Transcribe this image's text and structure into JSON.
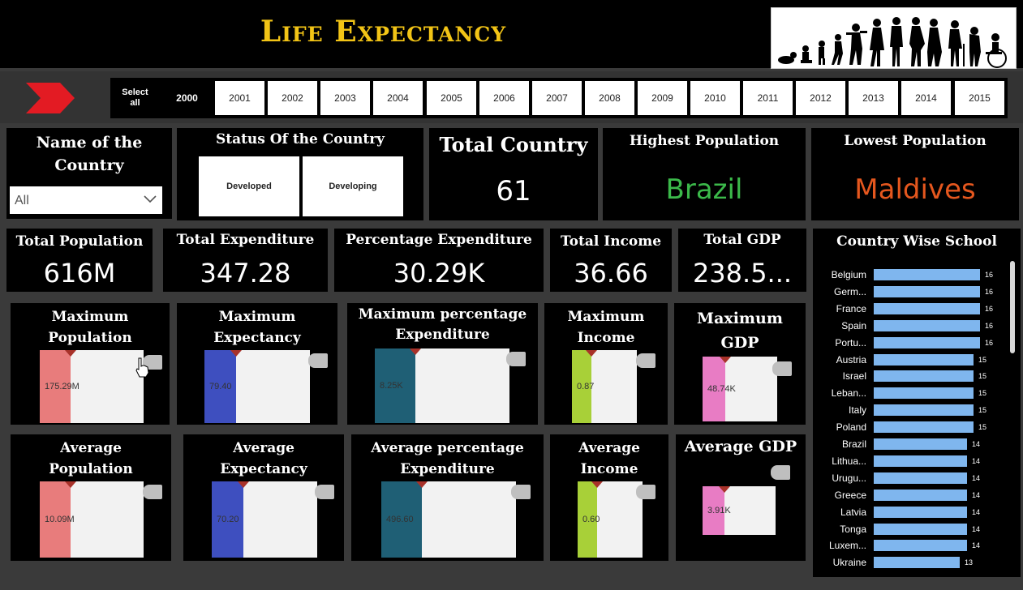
{
  "header": {
    "title": "Life Expectancy"
  },
  "slicer": {
    "select_all": "Select all",
    "years": [
      "2000",
      "2001",
      "2002",
      "2003",
      "2004",
      "2005",
      "2006",
      "2007",
      "2008",
      "2009",
      "2010",
      "2011",
      "2012",
      "2013",
      "2014",
      "2015"
    ],
    "selected_year": "2000"
  },
  "country_filter": {
    "title": "Name of the Country",
    "value": "All"
  },
  "status": {
    "title": "Status Of the Country",
    "options": [
      "Developed",
      "Developing"
    ]
  },
  "total_country": {
    "title": "Total Country",
    "value": "61"
  },
  "highest_population": {
    "title": "Highest Population",
    "value": "Brazil"
  },
  "lowest_population": {
    "title": "Lowest Population",
    "value": "Maldives"
  },
  "kpis": {
    "total_population": {
      "title": "Total Population",
      "value": "616M"
    },
    "total_expenditure": {
      "title": "Total Expenditure",
      "value": "347.28"
    },
    "percentage_expenditure": {
      "title": "Percentage Expenditure",
      "value": "30.29K"
    },
    "total_income": {
      "title": "Total Income",
      "value": "36.66"
    },
    "total_gdp": {
      "title": "Total GDP",
      "value": "238.5..."
    }
  },
  "max_cards": {
    "population": {
      "title_1": "Maximum",
      "title_2": "Population",
      "value": "175.29M"
    },
    "expectancy": {
      "title_1": "Maximum",
      "title_2": "Expectancy",
      "value": "79.40"
    },
    "pct_expenditure": {
      "title_1": "Maximum percentage",
      "title_2": "Expenditure",
      "value": "8.25K"
    },
    "income": {
      "title_1": "Maximum",
      "title_2": "Income",
      "value": "0.87"
    },
    "gdp": {
      "title_1": "Maximum",
      "title_2": "GDP",
      "value": "48.74K"
    }
  },
  "avg_cards": {
    "population": {
      "title_1": "Average",
      "title_2": "Population",
      "value": "10.09M"
    },
    "expectancy": {
      "title_1": "Average",
      "title_2": "Expectancy",
      "value": "70.20"
    },
    "pct_expenditure": {
      "title_1": "Average percentage",
      "title_2": "Expenditure",
      "value": "496.60"
    },
    "income": {
      "title_1": "Average",
      "title_2": "Income",
      "value": "0.60"
    },
    "gdp": {
      "title_1": "Average GDP",
      "value": "3.91K"
    }
  },
  "colors": {
    "title_gold": "#f2c416",
    "brazil_green": "#3bb94a",
    "maldives_orange": "#e5571e",
    "gauge_population": "#e87c7c",
    "gauge_expectancy": "#3e4fbf",
    "gauge_pct_expenditure": "#1f5f75",
    "gauge_income": "#a8d038",
    "gauge_gdp": "#e87cc4",
    "school_bar": "#7fb6ee"
  },
  "chart_data": {
    "type": "bar",
    "orientation": "horizontal",
    "title": "Country Wise School",
    "categories": [
      "Belgium",
      "Germ...",
      "France",
      "Spain",
      "Portu...",
      "Austria",
      "Israel",
      "Leban...",
      "Italy",
      "Poland",
      "Brazil",
      "Lithua...",
      "Urugu...",
      "Greece",
      "Latvia",
      "Tonga",
      "Luxem...",
      "Ukraine"
    ],
    "values": [
      16,
      16,
      16,
      16,
      16,
      15,
      15,
      15,
      15,
      15,
      14,
      14,
      14,
      14,
      14,
      14,
      14,
      13
    ],
    "data_labels": [
      "16",
      "16",
      "16",
      "16",
      "16",
      "15",
      "15",
      "15",
      "15",
      "15",
      "14",
      "14",
      "14",
      "14",
      "14",
      "14",
      "14",
      "13"
    ],
    "xlim": [
      0,
      16
    ]
  }
}
